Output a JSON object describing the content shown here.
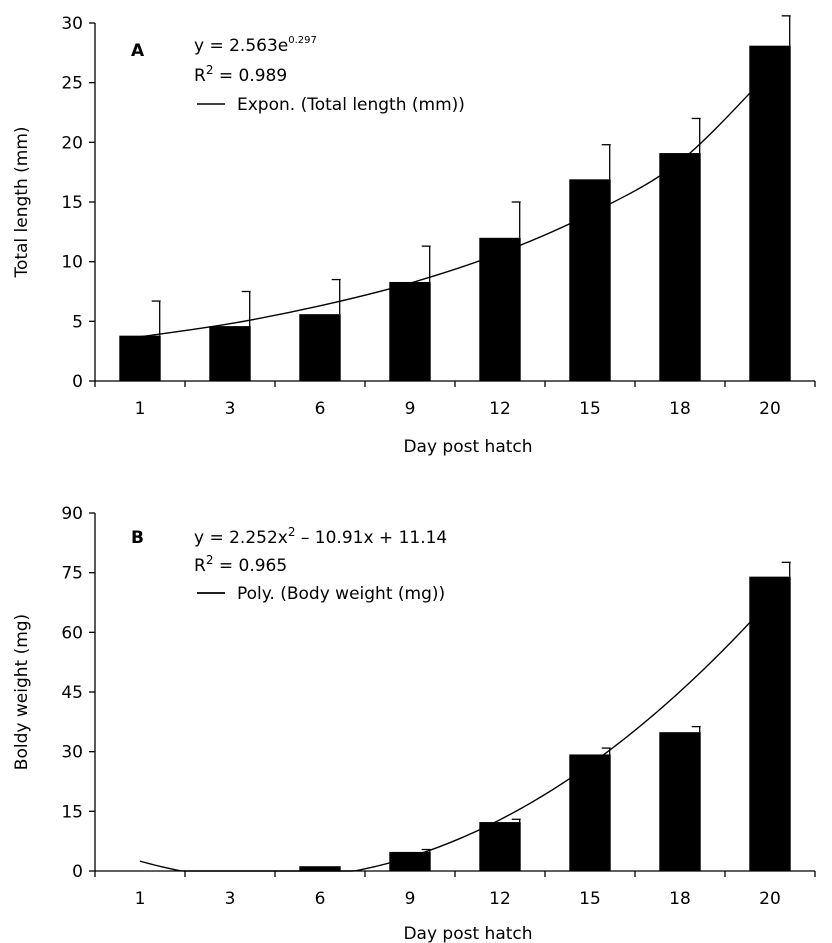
{
  "chart_data": [
    {
      "type": "bar",
      "panel_label": "A",
      "categories": [
        "1",
        "3",
        "6",
        "9",
        "12",
        "15",
        "18",
        "20"
      ],
      "series": [
        {
          "values": [
            3.8,
            4.6,
            5.6,
            8.3,
            12.0,
            16.9,
            19.1,
            28.1
          ],
          "error": [
            2.9,
            2.9,
            2.9,
            3.0,
            3.0,
            2.9,
            2.9,
            2.5
          ],
          "color": "#000000"
        }
      ],
      "trendline": {
        "type": "exponential",
        "legend": "Expon. (Total length (mm))",
        "points": [
          3.7,
          4.8,
          6.3,
          8.2,
          10.7,
          14.0,
          18.4,
          25.9
        ]
      },
      "equation": {
        "prefix": "y = 2.563e",
        "exponent": "0.297",
        "r2_label": "R",
        "r2_exp": "2",
        "r2_value": " = 0.989"
      },
      "xlabel": "Day post hatch",
      "ylabel": "Total length (mm)",
      "ylim": [
        0,
        30
      ],
      "yticks": [
        "0",
        "5",
        "10",
        "15",
        "20",
        "25",
        "30"
      ],
      "grid": false
    },
    {
      "type": "bar",
      "panel_label": "B",
      "categories": [
        "1",
        "3",
        "6",
        "9",
        "12",
        "15",
        "18",
        "20"
      ],
      "series": [
        {
          "values": [
            0,
            0,
            1.2,
            4.8,
            12.3,
            29.3,
            34.9,
            74.0
          ],
          "error": [
            0,
            0,
            0,
            0.6,
            0.7,
            1.6,
            1.4,
            3.6
          ],
          "color": "#000000"
        }
      ],
      "trendline": {
        "type": "polynomial",
        "legend": "Poly. (Body weight (mg))",
        "coefficients": [
          2.252,
          -10.91,
          11.14
        ]
      },
      "equation": {
        "prefix": "y = 2.252x",
        "exp_1": "2",
        "suffix": " – 10.91x + 11.14",
        "r2_label": "R",
        "r2_exp": "2",
        "r2_value": " = 0.965"
      },
      "xlabel": "Day post hatch",
      "ylabel": "Boldy weight (mg)",
      "ylim": [
        0,
        90
      ],
      "yticks": [
        "0",
        "15",
        "30",
        "45",
        "60",
        "75",
        "90"
      ],
      "grid": false
    }
  ]
}
